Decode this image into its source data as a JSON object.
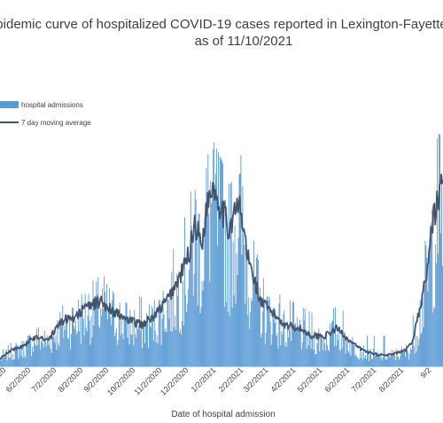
{
  "chart_data": {
    "type": "bar",
    "title_line1": "pidemic curve of hospitalized COVID-19 cases reported in Lexington-Fayette",
    "title_line2": "as of 11/10/2021",
    "xlabel": "Date of hospital admission",
    "ylabel": "",
    "y_axis_visible": false,
    "grid": false,
    "legend_position": "top-left",
    "series": [
      {
        "name": "hospital admissions",
        "kind": "bar",
        "color": "#5b9bd5"
      },
      {
        "name": "7 day moving average",
        "kind": "line",
        "color": "#44546a"
      }
    ],
    "x_ticks": [
      "/2020",
      "6/2/2020",
      "7/2/2020",
      "8/2/2020",
      "9/2/2020",
      "10/2/2020",
      "11/2/2020",
      "12/2/2020",
      "1/2/2021",
      "2/2/2021",
      "3/2/2021",
      "4/2/2021",
      "5/2/2021",
      "6/2/2021",
      "7/2/2021",
      "8/2/2021",
      "9/2"
    ],
    "x_range": [
      "4/21/2020",
      "9/15/2021"
    ],
    "ylim": [
      0,
      40
    ],
    "x_dates": [
      "4/21/2020",
      "5/2/2020",
      "5/16/2020",
      "6/2/2020",
      "6/16/2020",
      "7/2/2020",
      "7/16/2020",
      "8/2/2020",
      "8/16/2020",
      "9/2/2020",
      "9/16/2020",
      "10/2/2020",
      "10/16/2020",
      "11/2/2020",
      "11/16/2020",
      "11/26/2020",
      "12/2/2020",
      "12/10/2020",
      "12/16/2020",
      "12/22/2020",
      "1/2/2021",
      "1/10/2021",
      "1/16/2021",
      "1/23/2021",
      "2/2/2021",
      "2/10/2021",
      "2/16/2021",
      "3/2/2021",
      "3/16/2021",
      "4/2/2021",
      "4/16/2021",
      "5/2/2021",
      "5/16/2021",
      "6/2/2021",
      "6/16/2021",
      "7/2/2021",
      "7/16/2021",
      "8/2/2021",
      "8/10/2021",
      "8/16/2021",
      "8/22/2021",
      "8/28/2021",
      "9/2/2021",
      "9/8/2021",
      "9/15/2021"
    ],
    "moving_average": [
      1,
      2,
      2.5,
      4,
      3.5,
      6,
      6.5,
      8,
      8.5,
      7,
      6,
      5.5,
      6.5,
      9,
      12,
      15,
      19,
      16,
      21,
      24,
      21,
      18,
      20,
      21,
      14,
      11,
      8.5,
      7,
      5.5,
      5,
      4,
      4,
      5,
      3,
      2,
      1.5,
      1.5,
      2,
      3,
      6,
      9,
      13,
      18,
      22,
      24
    ],
    "bar_peaks": [
      2,
      3,
      4,
      5,
      6,
      8,
      9,
      11,
      12,
      11,
      10,
      9,
      11,
      14,
      18,
      22,
      28,
      24,
      33,
      30,
      27,
      24,
      30,
      35,
      18,
      16,
      12,
      10,
      9,
      8,
      7,
      7,
      8,
      6,
      4,
      4,
      4,
      4,
      6,
      10,
      14,
      19,
      26,
      30,
      32
    ]
  }
}
